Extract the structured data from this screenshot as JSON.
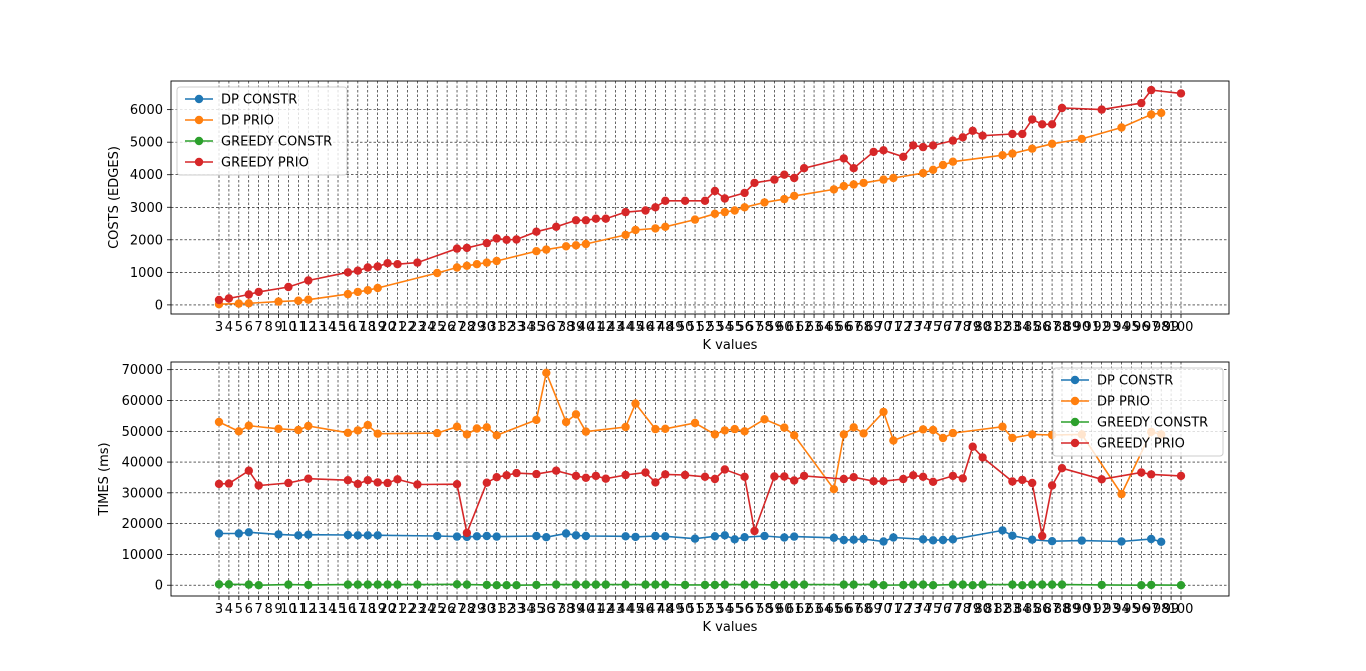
{
  "chart_data": [
    {
      "type": "line",
      "xlabel": "K values",
      "ylabel": "COSTS (EDGES)",
      "xlim": [
        3,
        100
      ],
      "ylim": [
        0,
        6500
      ],
      "yticks": [
        0,
        1000,
        2000,
        3000,
        4000,
        5000,
        6000
      ],
      "grid": true,
      "legend_position": "upper-left",
      "series": [
        {
          "name": "DP CONSTR",
          "color": "#1f77b4",
          "x": [],
          "y": []
        },
        {
          "name": "DP PRIO",
          "color": "#ff7f0e",
          "x": [
            3,
            5,
            6,
            9,
            11,
            12,
            16,
            17,
            18,
            19,
            25,
            27,
            28,
            29,
            30,
            31,
            35,
            36,
            38,
            39,
            40,
            44,
            45,
            47,
            48,
            51,
            53,
            54,
            55,
            56,
            58,
            60,
            61,
            65,
            66,
            67,
            68,
            70,
            71,
            74,
            75,
            76,
            77,
            82,
            83,
            85,
            87,
            90,
            94,
            97,
            98
          ],
          "y": [
            20,
            40,
            50,
            100,
            130,
            160,
            330,
            400,
            450,
            520,
            980,
            1150,
            1200,
            1250,
            1300,
            1350,
            1650,
            1700,
            1800,
            1830,
            1870,
            2150,
            2300,
            2350,
            2400,
            2620,
            2800,
            2850,
            2900,
            3000,
            3150,
            3250,
            3350,
            3550,
            3650,
            3700,
            3750,
            3850,
            3900,
            4050,
            4150,
            4300,
            4400,
            4600,
            4650,
            4800,
            4950,
            5100,
            5450,
            5850,
            5900
          ]
        },
        {
          "name": "GREEDY CONSTR",
          "color": "#2ca02c",
          "x": [],
          "y": []
        },
        {
          "name": "GREEDY PRIO",
          "color": "#d62728",
          "x": [
            3,
            4,
            6,
            7,
            10,
            12,
            16,
            17,
            18,
            19,
            20,
            21,
            23,
            27,
            28,
            30,
            31,
            32,
            33,
            35,
            37,
            39,
            40,
            41,
            42,
            44,
            46,
            47,
            48,
            50,
            52,
            53,
            54,
            56,
            57,
            59,
            60,
            61,
            62,
            66,
            67,
            69,
            70,
            72,
            73,
            74,
            75,
            77,
            78,
            79,
            80,
            83,
            84,
            85,
            86,
            87,
            88,
            92,
            96,
            97,
            100
          ],
          "y": [
            150,
            200,
            320,
            400,
            550,
            750,
            1000,
            1050,
            1150,
            1180,
            1280,
            1250,
            1300,
            1730,
            1750,
            1900,
            2040,
            2000,
            2010,
            2250,
            2400,
            2600,
            2600,
            2650,
            2650,
            2850,
            2900,
            3000,
            3200,
            3200,
            3200,
            3500,
            3270,
            3440,
            3750,
            3850,
            4000,
            3900,
            4200,
            4500,
            4200,
            4700,
            4750,
            4550,
            4900,
            4850,
            4900,
            5050,
            5150,
            5350,
            5200,
            5250,
            5250,
            5700,
            5550,
            5550,
            6050,
            6000,
            6200,
            6600,
            6500
          ]
        }
      ]
    },
    {
      "type": "line",
      "xlabel": "K values",
      "ylabel": "TIMES (ms)",
      "xlim": [
        3,
        100
      ],
      "ylim": [
        0,
        70000
      ],
      "yticks": [
        0,
        10000,
        20000,
        30000,
        40000,
        50000,
        60000,
        70000
      ],
      "grid": true,
      "legend_position": "upper-right",
      "series": [
        {
          "name": "DP CONSTR",
          "color": "#1f77b4",
          "x": [
            3,
            5,
            6,
            9,
            11,
            12,
            16,
            17,
            18,
            19,
            25,
            27,
            28,
            29,
            30,
            31,
            35,
            36,
            38,
            39,
            40,
            44,
            45,
            47,
            48,
            51,
            53,
            54,
            55,
            56,
            58,
            60,
            61,
            65,
            66,
            67,
            68,
            70,
            71,
            74,
            75,
            76,
            77,
            82,
            83,
            85,
            87,
            90,
            94,
            97,
            98
          ],
          "y": [
            16800,
            16800,
            17200,
            16500,
            16200,
            16400,
            16300,
            16200,
            16200,
            16200,
            16000,
            15800,
            15700,
            15900,
            16000,
            15800,
            16000,
            15600,
            16800,
            16200,
            16000,
            15900,
            15700,
            16000,
            15900,
            15100,
            15900,
            16200,
            14900,
            15600,
            16000,
            15500,
            15800,
            15400,
            14700,
            14800,
            15000,
            14200,
            15500,
            14900,
            14600,
            14700,
            14900,
            17800,
            16100,
            14800,
            14300,
            14500,
            14200,
            15000,
            14100
          ]
        },
        {
          "name": "DP PRIO",
          "color": "#ff7f0e",
          "x": [
            3,
            5,
            6,
            9,
            11,
            12,
            16,
            17,
            18,
            19,
            25,
            27,
            28,
            29,
            30,
            31,
            35,
            36,
            38,
            39,
            40,
            44,
            45,
            47,
            48,
            51,
            53,
            54,
            55,
            56,
            58,
            60,
            61,
            65,
            66,
            67,
            68,
            70,
            71,
            74,
            75,
            76,
            77,
            82,
            83,
            85,
            87,
            90,
            94,
            97,
            98
          ],
          "y": [
            53000,
            50000,
            51800,
            50800,
            50400,
            51700,
            49500,
            50300,
            52000,
            49200,
            49400,
            51500,
            49000,
            50900,
            51300,
            48700,
            53700,
            69000,
            53000,
            55500,
            49900,
            51400,
            59000,
            50700,
            50800,
            52700,
            49000,
            50300,
            50700,
            50000,
            53900,
            51200,
            48700,
            31200,
            49000,
            51300,
            49300,
            56300,
            47000,
            50600,
            50400,
            47800,
            49400,
            51500,
            47800,
            49000,
            48800,
            49000,
            29600,
            49800,
            49000
          ]
        },
        {
          "name": "GREEDY CONSTR",
          "color": "#2ca02c",
          "x": [
            3,
            4,
            6,
            7,
            10,
            12,
            16,
            17,
            18,
            19,
            20,
            21,
            23,
            27,
            28,
            30,
            31,
            32,
            33,
            35,
            37,
            39,
            40,
            41,
            42,
            44,
            46,
            47,
            48,
            50,
            52,
            53,
            54,
            56,
            57,
            59,
            60,
            61,
            62,
            66,
            67,
            69,
            70,
            72,
            73,
            74,
            75,
            77,
            78,
            79,
            80,
            83,
            84,
            85,
            86,
            87,
            88,
            92,
            96,
            97,
            100
          ],
          "y": [
            300,
            300,
            200,
            0,
            200,
            100,
            200,
            200,
            200,
            200,
            200,
            200,
            200,
            300,
            200,
            100,
            0,
            0,
            0,
            100,
            200,
            200,
            200,
            200,
            200,
            200,
            200,
            200,
            200,
            100,
            100,
            100,
            200,
            200,
            200,
            100,
            200,
            200,
            200,
            200,
            200,
            300,
            0,
            100,
            200,
            200,
            0,
            200,
            200,
            0,
            200,
            200,
            0,
            200,
            200,
            200,
            200,
            100,
            0,
            100,
            0
          ]
        },
        {
          "name": "GREEDY PRIO",
          "color": "#d62728",
          "x": [
            3,
            4,
            6,
            7,
            10,
            12,
            16,
            17,
            18,
            19,
            20,
            21,
            23,
            27,
            28,
            30,
            31,
            32,
            33,
            35,
            37,
            39,
            40,
            41,
            42,
            44,
            46,
            47,
            48,
            50,
            52,
            53,
            54,
            56,
            57,
            59,
            60,
            61,
            62,
            66,
            67,
            69,
            70,
            72,
            73,
            74,
            75,
            77,
            78,
            79,
            80,
            83,
            84,
            85,
            86,
            87,
            88,
            92,
            96,
            97,
            100
          ],
          "y": [
            32900,
            33000,
            37200,
            32400,
            33200,
            34600,
            34100,
            32900,
            34100,
            33400,
            33200,
            34400,
            32700,
            32800,
            17000,
            33300,
            35100,
            35700,
            36400,
            36100,
            37200,
            35500,
            34900,
            35500,
            34600,
            35800,
            36600,
            33400,
            36000,
            35800,
            35200,
            34500,
            37600,
            35200,
            17600,
            35300,
            35300,
            34000,
            35500,
            34500,
            35100,
            33800,
            33800,
            34500,
            35700,
            35200,
            33600,
            35500,
            34700,
            45000,
            41500,
            33700,
            34200,
            33200,
            16000,
            32400,
            38000,
            34400,
            36600,
            36000,
            35500
          ]
        }
      ]
    }
  ]
}
